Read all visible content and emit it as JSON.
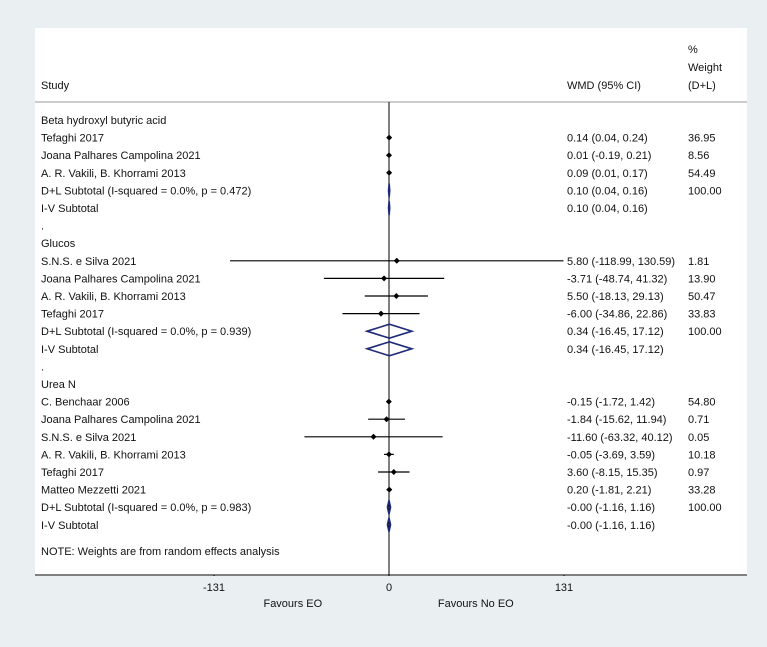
{
  "header": {
    "study": "Study",
    "ci": "WMD (95% CI)",
    "weight_lines": [
      "%",
      "Weight",
      "(D+L)"
    ]
  },
  "chart_data": {
    "type": "forest",
    "effect_measure": "WMD (95% CI)",
    "x_ticks": [
      -131,
      0,
      131
    ],
    "x_tick_labels": [
      "-131",
      "0",
      "131"
    ],
    "favours_left": "Favours EO",
    "favours_right": "Favours No EO",
    "note": "NOTE: Weights are from random effects analysis",
    "rows": [
      {
        "kind": "group",
        "label": "Beta hydroxyl butyric acid"
      },
      {
        "kind": "study",
        "label": "Tefaghi 2017",
        "est": 0.14,
        "lo": 0.04,
        "hi": 0.24,
        "ci_text": "0.14 (0.04, 0.24)",
        "weight": "36.95"
      },
      {
        "kind": "study",
        "label": "Joana Palhares Campolina 2021",
        "est": 0.01,
        "lo": -0.19,
        "hi": 0.21,
        "ci_text": "0.01 (-0.19, 0.21)",
        "weight": "8.56"
      },
      {
        "kind": "study",
        "label": "A. R. Vakili, B. Khorrami 2013",
        "est": 0.09,
        "lo": 0.01,
        "hi": 0.17,
        "ci_text": "0.09 (0.01, 0.17)",
        "weight": "54.49"
      },
      {
        "kind": "subtotal",
        "label": "D+L Subtotal  (I-squared = 0.0%, p = 0.472)",
        "est": 0.1,
        "lo": 0.04,
        "hi": 0.16,
        "ci_text": "0.10 (0.04, 0.16)",
        "weight": "100.00"
      },
      {
        "kind": "subtotal",
        "label": "I-V Subtotal",
        "est": 0.1,
        "lo": 0.04,
        "hi": 0.16,
        "ci_text": "0.10 (0.04, 0.16)",
        "weight": ""
      },
      {
        "kind": "spacer",
        "label": "."
      },
      {
        "kind": "group",
        "label": "Glucos"
      },
      {
        "kind": "study",
        "label": "S.N.S. e Silva 2021",
        "est": 5.8,
        "lo": -118.99,
        "hi": 130.59,
        "ci_text": "5.80 (-118.99, 130.59)",
        "weight": "1.81"
      },
      {
        "kind": "study",
        "label": "Joana Palhares Campolina 2021",
        "est": -3.71,
        "lo": -48.74,
        "hi": 41.32,
        "ci_text": "-3.71 (-48.74, 41.32)",
        "weight": "13.90"
      },
      {
        "kind": "study",
        "label": "A. R. Vakili, B. Khorrami 2013",
        "est": 5.5,
        "lo": -18.13,
        "hi": 29.13,
        "ci_text": "5.50 (-18.13, 29.13)",
        "weight": "50.47"
      },
      {
        "kind": "study",
        "label": "Tefaghi 2017",
        "est": -6.0,
        "lo": -34.86,
        "hi": 22.86,
        "ci_text": "-6.00 (-34.86, 22.86)",
        "weight": "33.83"
      },
      {
        "kind": "subtotal",
        "label": "D+L Subtotal  (I-squared = 0.0%, p = 0.939)",
        "est": 0.34,
        "lo": -16.45,
        "hi": 17.12,
        "ci_text": "0.34 (-16.45, 17.12)",
        "weight": "100.00"
      },
      {
        "kind": "subtotal",
        "label": "I-V Subtotal",
        "est": 0.34,
        "lo": -16.45,
        "hi": 17.12,
        "ci_text": "0.34 (-16.45, 17.12)",
        "weight": ""
      },
      {
        "kind": "spacer",
        "label": "."
      },
      {
        "kind": "group",
        "label": "Urea N"
      },
      {
        "kind": "study",
        "label": "C. Benchaar 2006",
        "est": -0.15,
        "lo": -1.72,
        "hi": 1.42,
        "ci_text": "-0.15 (-1.72, 1.42)",
        "weight": "54.80"
      },
      {
        "kind": "study",
        "label": "Joana Palhares Campolina 2021",
        "est": -1.84,
        "lo": -15.62,
        "hi": 11.94,
        "ci_text": "-1.84 (-15.62, 11.94)",
        "weight": "0.71"
      },
      {
        "kind": "study",
        "label": "S.N.S. e Silva 2021",
        "est": -11.6,
        "lo": -63.32,
        "hi": 40.12,
        "ci_text": "-11.60 (-63.32, 40.12)",
        "weight": "0.05"
      },
      {
        "kind": "study",
        "label": "A. R. Vakili, B. Khorrami 2013",
        "est": -0.05,
        "lo": -3.69,
        "hi": 3.59,
        "ci_text": "-0.05 (-3.69, 3.59)",
        "weight": "10.18"
      },
      {
        "kind": "study",
        "label": "Tefaghi 2017",
        "est": 3.6,
        "lo": -8.15,
        "hi": 15.35,
        "ci_text": "3.60 (-8.15, 15.35)",
        "weight": "0.97"
      },
      {
        "kind": "study",
        "label": "Matteo Mezzetti 2021",
        "est": 0.2,
        "lo": -1.81,
        "hi": 2.21,
        "ci_text": "0.20 (-1.81, 2.21)",
        "weight": "33.28"
      },
      {
        "kind": "subtotal",
        "label": "D+L Subtotal  (I-squared = 0.0%, p = 0.983)",
        "est": -0.0,
        "lo": -1.16,
        "hi": 1.16,
        "ci_text": "-0.00 (-1.16, 1.16)",
        "weight": "100.00"
      },
      {
        "kind": "subtotal",
        "label": "I-V Subtotal",
        "est": -0.0,
        "lo": -1.16,
        "hi": 1.16,
        "ci_text": "-0.00 (-1.16, 1.16)",
        "weight": ""
      }
    ],
    "colors": {
      "marker": "#000000",
      "diamond": "#1f2a78",
      "rule": "#999999"
    }
  }
}
